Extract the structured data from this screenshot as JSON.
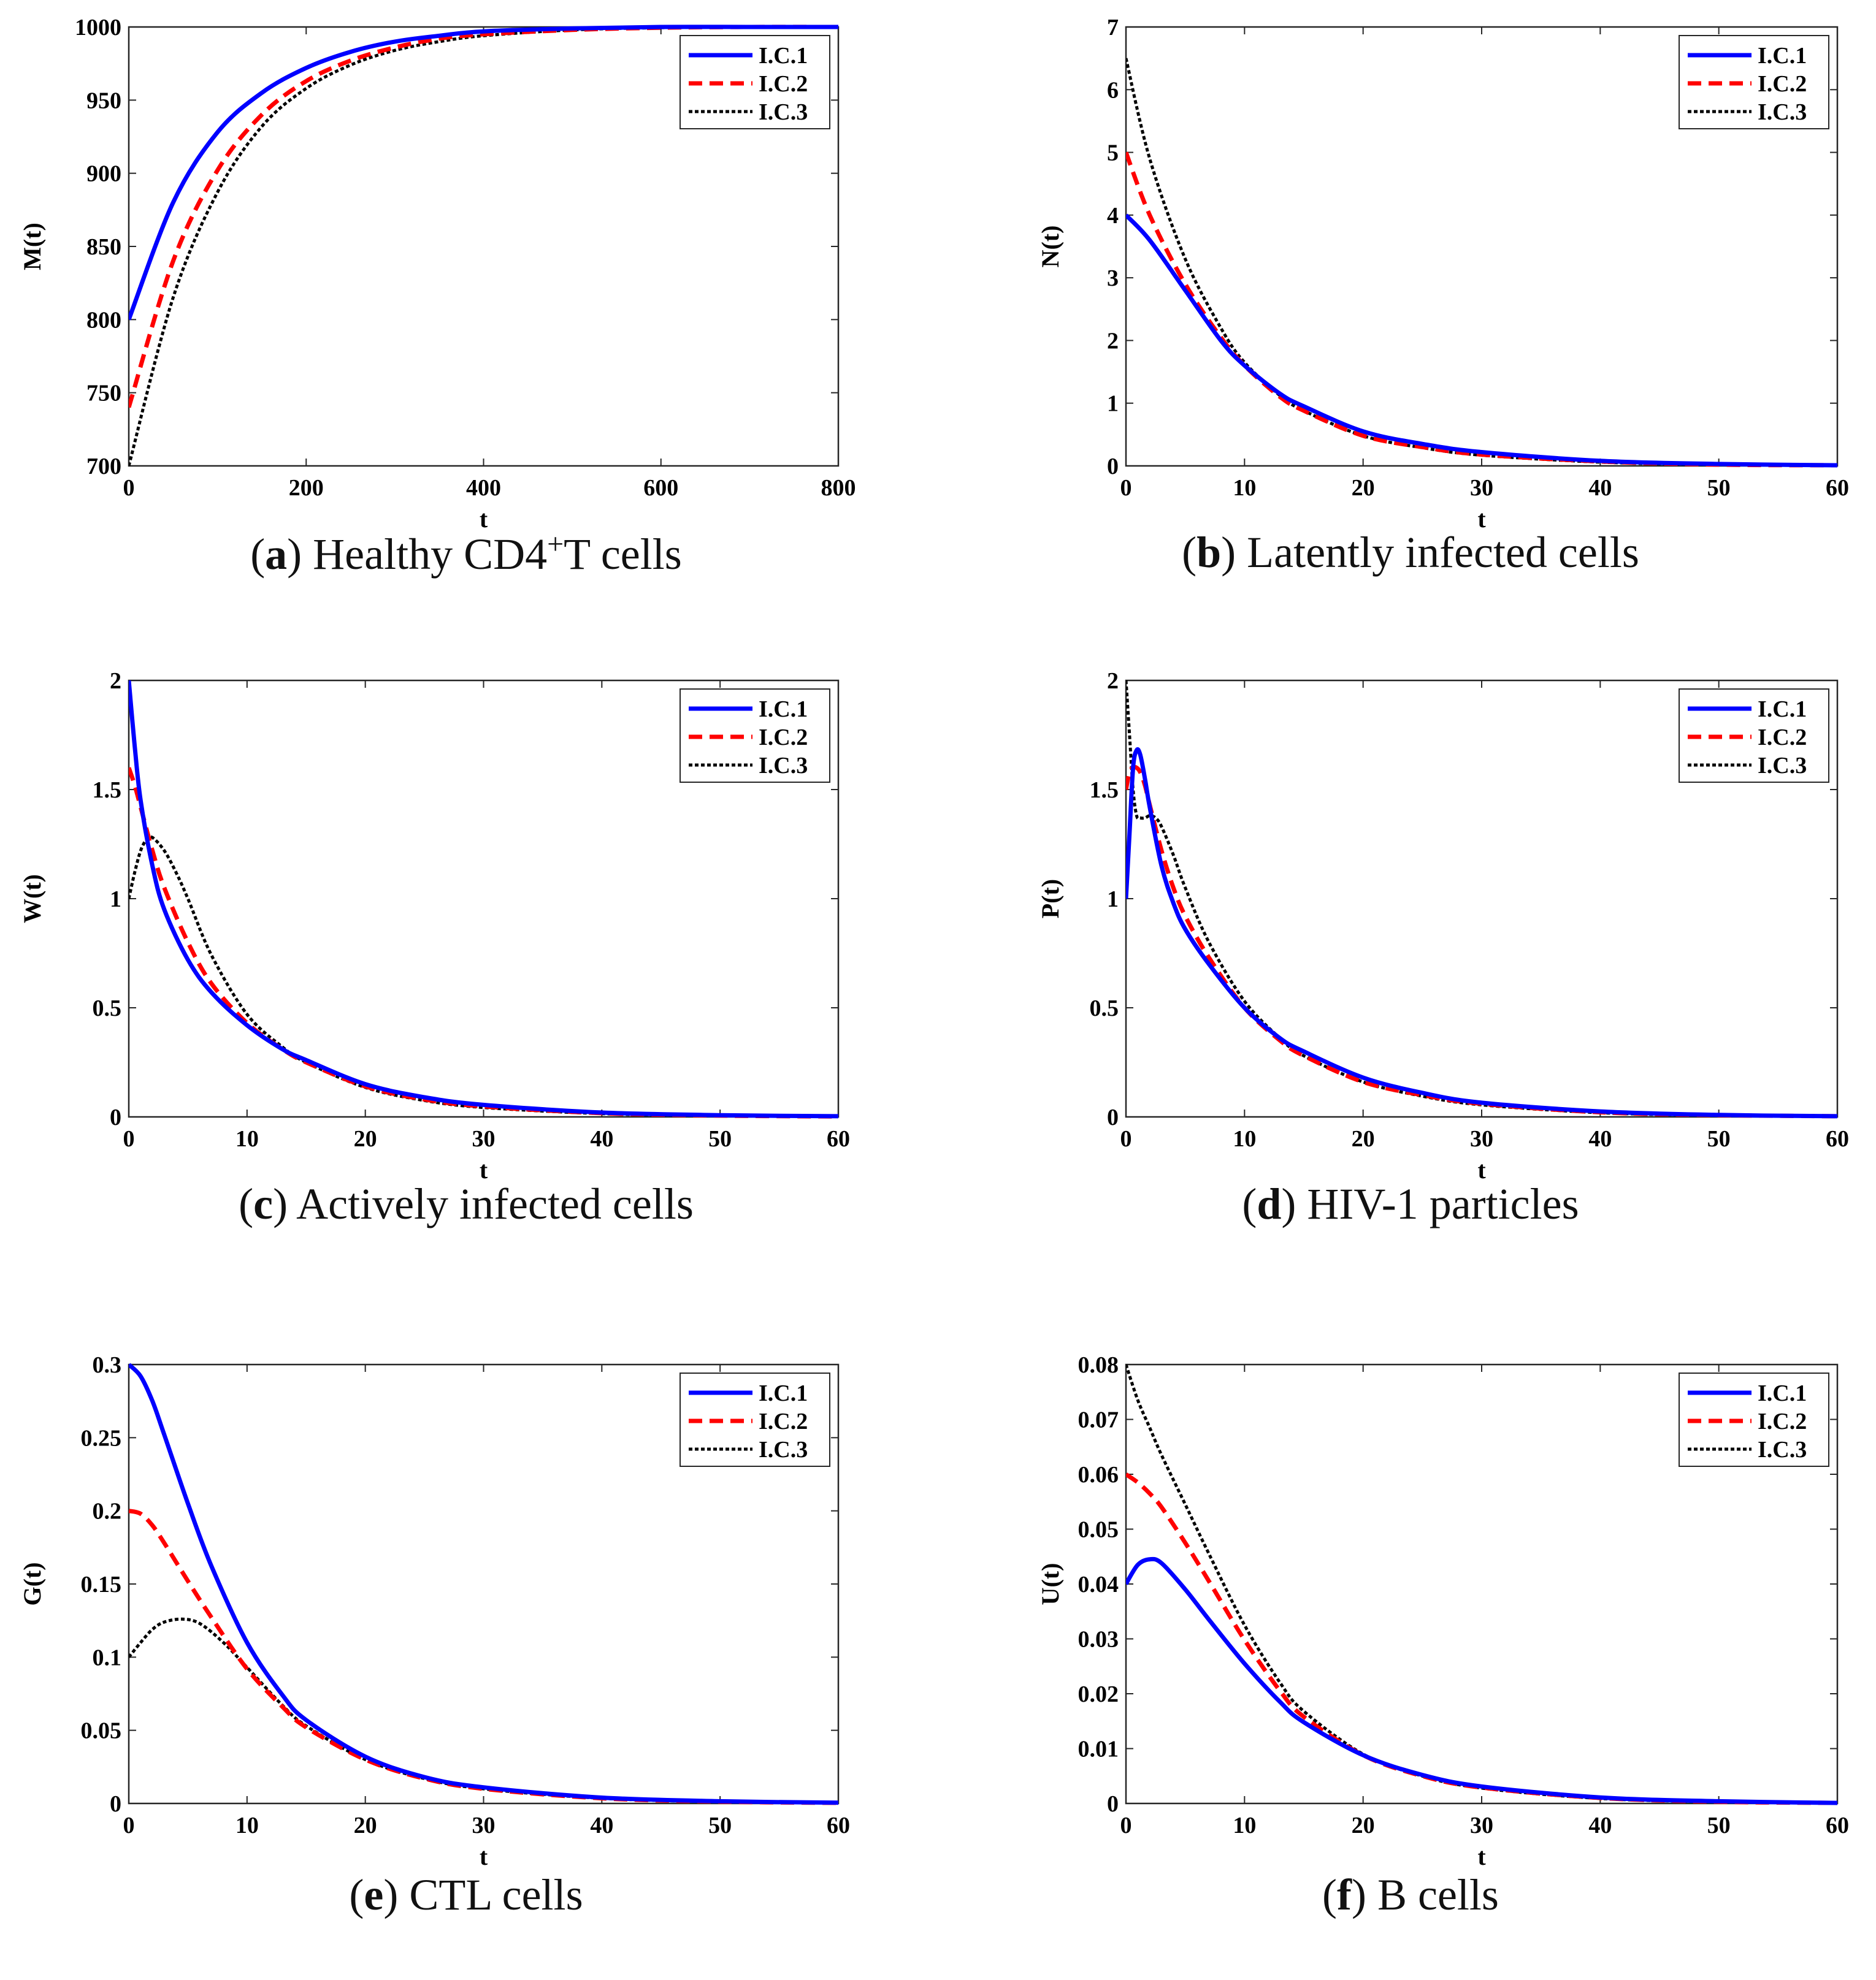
{
  "legend_labels": [
    "I.C.1",
    "I.C.2",
    "I.C.3"
  ],
  "series_colors": [
    "#0000ff",
    "#ff0000",
    "#000000"
  ],
  "chart_data": [
    {
      "type": "line",
      "caption_letter": "a",
      "caption_pre": "Healthy CD4",
      "caption_sup": "+",
      "caption_post": "T cells",
      "xlabel": "t",
      "ylabel": "M(t)",
      "xlim": [
        0,
        800
      ],
      "ylim": [
        700,
        1000
      ],
      "xticks": [
        0,
        200,
        400,
        600,
        800
      ],
      "yticks": [
        700,
        750,
        800,
        850,
        900,
        950,
        1000
      ],
      "xtick_labels": [
        "0",
        "200",
        "400",
        "600",
        "800"
      ],
      "ytick_labels": [
        "700",
        "750",
        "800",
        "850",
        "900",
        "950",
        "1000"
      ],
      "legend_position": "top-right",
      "series": [
        {
          "name": "I.C.1",
          "x": [
            0,
            50,
            100,
            150,
            200,
            250,
            300,
            350,
            400,
            500,
            600,
            700,
            800
          ],
          "y": [
            800,
            880,
            928,
            955,
            972,
            983,
            990,
            994,
            997,
            999,
            1000,
            1000,
            1000
          ]
        },
        {
          "name": "I.C.2",
          "x": [
            0,
            50,
            100,
            150,
            200,
            250,
            300,
            350,
            400,
            500,
            600,
            700,
            800
          ],
          "y": [
            740,
            840,
            902,
            940,
            963,
            977,
            986,
            992,
            995,
            998,
            999.5,
            1000,
            1000
          ]
        },
        {
          "name": "I.C.3",
          "x": [
            0,
            50,
            100,
            150,
            200,
            250,
            300,
            350,
            400,
            500,
            600,
            700,
            800
          ],
          "y": [
            700,
            815,
            887,
            932,
            958,
            974,
            984,
            990,
            994,
            998,
            999.5,
            1000,
            1000
          ]
        }
      ]
    },
    {
      "type": "line",
      "caption_letter": "b",
      "caption_pre": "Latently infected cells",
      "caption_sup": "",
      "caption_post": "",
      "xlabel": "t",
      "ylabel": "N(t)",
      "xlim": [
        0,
        60
      ],
      "ylim": [
        0,
        7
      ],
      "xticks": [
        0,
        10,
        20,
        30,
        40,
        50,
        60
      ],
      "yticks": [
        0,
        1,
        2,
        3,
        4,
        5,
        6,
        7
      ],
      "xtick_labels": [
        "0",
        "10",
        "20",
        "30",
        "40",
        "50",
        "60"
      ],
      "ytick_labels": [
        "0",
        "1",
        "2",
        "3",
        "4",
        "5",
        "6",
        "7"
      ],
      "legend_position": "top-right",
      "series": [
        {
          "name": "I.C.1",
          "x": [
            0,
            2,
            5,
            8,
            10,
            13,
            15,
            20,
            25,
            30,
            40,
            50,
            60
          ],
          "y": [
            4.0,
            3.6,
            2.8,
            2.0,
            1.6,
            1.15,
            0.95,
            0.55,
            0.35,
            0.22,
            0.08,
            0.03,
            0.01
          ]
        },
        {
          "name": "I.C.2",
          "x": [
            0,
            2,
            5,
            8,
            10,
            13,
            15,
            20,
            25,
            30,
            40,
            50,
            60
          ],
          "y": [
            5.0,
            4.0,
            2.9,
            2.05,
            1.6,
            1.1,
            0.88,
            0.48,
            0.3,
            0.18,
            0.07,
            0.02,
            0.01
          ]
        },
        {
          "name": "I.C.3",
          "x": [
            0,
            2,
            5,
            8,
            10,
            13,
            15,
            20,
            25,
            30,
            40,
            50,
            60
          ],
          "y": [
            6.5,
            4.9,
            3.3,
            2.2,
            1.65,
            1.12,
            0.88,
            0.48,
            0.29,
            0.17,
            0.06,
            0.02,
            0.01
          ]
        }
      ]
    },
    {
      "type": "line",
      "caption_letter": "c",
      "caption_pre": "Actively infected cells",
      "caption_sup": "",
      "caption_post": "",
      "xlabel": "t",
      "ylabel": "W(t)",
      "xlim": [
        0,
        60
      ],
      "ylim": [
        0,
        2
      ],
      "xticks": [
        0,
        10,
        20,
        30,
        40,
        50,
        60
      ],
      "yticks": [
        0,
        0.5,
        1,
        1.5,
        2
      ],
      "xtick_labels": [
        "0",
        "10",
        "20",
        "30",
        "40",
        "50",
        "60"
      ],
      "ytick_labels": [
        "0",
        "0.5",
        "1",
        "1.5",
        "2"
      ],
      "legend_position": "top-right",
      "series": [
        {
          "name": "I.C.1",
          "x": [
            0,
            0.5,
            1,
            2,
            3,
            5,
            7,
            10,
            13,
            15,
            20,
            25,
            30,
            40,
            50,
            60
          ],
          "y": [
            2.0,
            1.7,
            1.45,
            1.15,
            0.95,
            0.72,
            0.57,
            0.42,
            0.31,
            0.26,
            0.15,
            0.09,
            0.055,
            0.02,
            0.008,
            0.003
          ]
        },
        {
          "name": "I.C.2",
          "x": [
            0,
            0.5,
            1,
            2,
            3,
            5,
            7,
            10,
            13,
            15,
            20,
            25,
            30,
            40,
            50,
            60
          ],
          "y": [
            1.6,
            1.52,
            1.42,
            1.22,
            1.05,
            0.8,
            0.61,
            0.43,
            0.31,
            0.25,
            0.14,
            0.08,
            0.048,
            0.017,
            0.006,
            0.002
          ]
        },
        {
          "name": "I.C.3",
          "x": [
            0,
            0.5,
            1,
            1.5,
            2,
            3,
            4,
            5,
            7,
            10,
            13,
            15,
            20,
            25,
            30,
            40,
            50,
            60
          ],
          "y": [
            1.0,
            1.12,
            1.22,
            1.27,
            1.28,
            1.22,
            1.12,
            1.0,
            0.74,
            0.47,
            0.32,
            0.25,
            0.135,
            0.075,
            0.043,
            0.015,
            0.005,
            0.002
          ]
        }
      ]
    },
    {
      "type": "line",
      "caption_letter": "d",
      "caption_pre": "HIV-1 particles",
      "caption_sup": "",
      "caption_post": "",
      "xlabel": "t",
      "ylabel": "P(t)",
      "xlim": [
        0,
        60
      ],
      "ylim": [
        0,
        2
      ],
      "xticks": [
        0,
        10,
        20,
        30,
        40,
        50,
        60
      ],
      "yticks": [
        0,
        0.5,
        1,
        1.5,
        2
      ],
      "xtick_labels": [
        "0",
        "10",
        "20",
        "30",
        "40",
        "50",
        "60"
      ],
      "ytick_labels": [
        "0",
        "0.5",
        "1",
        "1.5",
        "2"
      ],
      "legend_position": "top-right",
      "series": [
        {
          "name": "I.C.1",
          "x": [
            0,
            0.3,
            0.6,
            0.9,
            1.2,
            1.6,
            2,
            3,
            4,
            5,
            7,
            10,
            13,
            15,
            20,
            25,
            30,
            40,
            50,
            60
          ],
          "y": [
            1.0,
            1.3,
            1.6,
            1.68,
            1.66,
            1.55,
            1.42,
            1.15,
            0.98,
            0.86,
            0.7,
            0.5,
            0.36,
            0.3,
            0.18,
            0.11,
            0.065,
            0.025,
            0.009,
            0.003
          ]
        },
        {
          "name": "I.C.2",
          "x": [
            0,
            0.3,
            0.6,
            0.9,
            1.2,
            1.6,
            2,
            3,
            4,
            5,
            7,
            10,
            13,
            15,
            20,
            25,
            30,
            40,
            50,
            60
          ],
          "y": [
            1.5,
            1.58,
            1.6,
            1.6,
            1.58,
            1.52,
            1.43,
            1.22,
            1.05,
            0.92,
            0.73,
            0.5,
            0.35,
            0.28,
            0.16,
            0.1,
            0.06,
            0.021,
            0.008,
            0.003
          ]
        },
        {
          "name": "I.C.3",
          "x": [
            0,
            0.3,
            0.6,
            0.9,
            1.2,
            1.6,
            2,
            2.5,
            3,
            4,
            5,
            7,
            10,
            13,
            15,
            20,
            25,
            30,
            40,
            50,
            60
          ],
          "y": [
            2.0,
            1.75,
            1.5,
            1.38,
            1.37,
            1.37,
            1.38,
            1.37,
            1.33,
            1.2,
            1.05,
            0.8,
            0.53,
            0.36,
            0.28,
            0.16,
            0.095,
            0.055,
            0.019,
            0.007,
            0.002
          ]
        }
      ]
    },
    {
      "type": "line",
      "caption_letter": "e",
      "caption_pre": "CTL cells",
      "caption_sup": "",
      "caption_post": "",
      "xlabel": "t",
      "ylabel": "G(t)",
      "xlim": [
        0,
        60
      ],
      "ylim": [
        0,
        0.3
      ],
      "xticks": [
        0,
        10,
        20,
        30,
        40,
        50,
        60
      ],
      "yticks": [
        0,
        0.05,
        0.1,
        0.15,
        0.2,
        0.25,
        0.3
      ],
      "xtick_labels": [
        "0",
        "10",
        "20",
        "30",
        "40",
        "50",
        "60"
      ],
      "ytick_labels": [
        "0",
        "0.05",
        "0.1",
        "0.15",
        "0.2",
        "0.25",
        "0.3"
      ],
      "legend_position": "top-right",
      "series": [
        {
          "name": "I.C.1",
          "x": [
            0,
            1,
            2,
            3,
            5,
            7,
            10,
            13,
            15,
            20,
            25,
            30,
            40,
            50,
            60
          ],
          "y": [
            0.3,
            0.292,
            0.275,
            0.252,
            0.205,
            0.162,
            0.11,
            0.074,
            0.057,
            0.032,
            0.018,
            0.011,
            0.004,
            0.0015,
            0.0005
          ]
        },
        {
          "name": "I.C.2",
          "x": [
            0,
            1,
            2,
            3,
            5,
            7,
            10,
            13,
            15,
            20,
            25,
            30,
            40,
            50,
            60
          ],
          "y": [
            0.2,
            0.198,
            0.19,
            0.178,
            0.152,
            0.127,
            0.092,
            0.066,
            0.052,
            0.03,
            0.017,
            0.01,
            0.0035,
            0.0012,
            0.0004
          ]
        },
        {
          "name": "I.C.3",
          "x": [
            0,
            1,
            2,
            3,
            4.5,
            6,
            8,
            10,
            13,
            15,
            20,
            25,
            30,
            40,
            50,
            60
          ],
          "y": [
            0.1,
            0.11,
            0.119,
            0.124,
            0.126,
            0.123,
            0.11,
            0.093,
            0.067,
            0.053,
            0.03,
            0.017,
            0.01,
            0.0035,
            0.0012,
            0.0004
          ]
        }
      ]
    },
    {
      "type": "line",
      "caption_letter": "f",
      "caption_pre": "B cells",
      "caption_sup": "",
      "caption_post": "",
      "xlabel": "t",
      "ylabel": "U(t)",
      "xlim": [
        0,
        60
      ],
      "ylim": [
        0,
        0.08
      ],
      "xticks": [
        0,
        10,
        20,
        30,
        40,
        50,
        60
      ],
      "yticks": [
        0,
        0.01,
        0.02,
        0.03,
        0.04,
        0.05,
        0.06,
        0.07,
        0.08
      ],
      "xtick_labels": [
        "0",
        "10",
        "20",
        "30",
        "40",
        "50",
        "60"
      ],
      "ytick_labels": [
        "0",
        "0.01",
        "0.02",
        "0.03",
        "0.04",
        "0.05",
        "0.06",
        "0.07",
        "0.08"
      ],
      "legend_position": "top-right",
      "series": [
        {
          "name": "I.C.1",
          "x": [
            0,
            1,
            2,
            3,
            5,
            7,
            10,
            13,
            15,
            20,
            25,
            30,
            40,
            50,
            60
          ],
          "y": [
            0.04,
            0.0435,
            0.0445,
            0.0438,
            0.039,
            0.0335,
            0.0255,
            0.0185,
            0.0148,
            0.0088,
            0.0052,
            0.0031,
            0.0011,
            0.0004,
            0.0001
          ]
        },
        {
          "name": "I.C.2",
          "x": [
            0,
            1,
            2,
            3,
            5,
            7,
            10,
            13,
            15,
            20,
            25,
            30,
            40,
            50,
            60
          ],
          "y": [
            0.06,
            0.0585,
            0.0565,
            0.054,
            0.0475,
            0.0405,
            0.0298,
            0.0205,
            0.0158,
            0.0088,
            0.005,
            0.0029,
            0.001,
            0.0003,
            0.0001
          ]
        },
        {
          "name": "I.C.3",
          "x": [
            0,
            1,
            2,
            3,
            5,
            7,
            10,
            13,
            15,
            20,
            25,
            30,
            40,
            50,
            60
          ],
          "y": [
            0.08,
            0.0735,
            0.0685,
            0.0635,
            0.0545,
            0.0455,
            0.0325,
            0.022,
            0.0168,
            0.009,
            0.005,
            0.0028,
            0.0009,
            0.0003,
            0.0001
          ]
        }
      ]
    }
  ]
}
